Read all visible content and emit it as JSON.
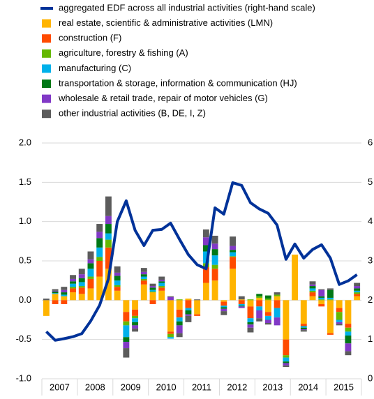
{
  "chart_data": {
    "type": "bar",
    "stacked": true,
    "year_labels": [
      "2007",
      "2008",
      "2009",
      "2010",
      "2011",
      "2012",
      "2013",
      "2014",
      "2015"
    ],
    "ylim": [
      -1.0,
      2.0
    ],
    "yticks": [
      {
        "value": -1.0,
        "label": "-1.0"
      },
      -0.5,
      {
        "value": 0,
        "label": "0.0"
      },
      0.5,
      {
        "value": 1.0,
        "label": "1.0"
      },
      1.5,
      {
        "value": 2.0,
        "label": "2.0"
      }
    ],
    "y2lim": [
      0,
      6
    ],
    "y2ticks": [
      0,
      1,
      2,
      3,
      4,
      5,
      6
    ],
    "grid": true,
    "series": [
      {
        "name": "aggregated EDF across all industrial activities (right-hand scale)",
        "type": "line",
        "axis": "y2",
        "color": "#003299",
        "values": [
          1.2,
          0.98,
          1.02,
          1.07,
          1.15,
          1.47,
          1.87,
          2.54,
          4.0,
          4.53,
          3.78,
          3.39,
          3.78,
          3.8,
          3.96,
          3.55,
          3.16,
          2.9,
          2.8,
          4.35,
          4.19,
          4.99,
          4.92,
          4.48,
          4.32,
          4.21,
          3.91,
          3.04,
          3.43,
          3.07,
          3.29,
          3.41,
          3.07,
          2.4,
          2.49,
          2.65
        ]
      },
      {
        "name": "real estate, scientific & administrative activities (LMN)",
        "color": "#ffb400",
        "values": [
          -0.2,
          0.08,
          0.05,
          0.1,
          0.08,
          0.15,
          0.3,
          0.4,
          0.12,
          -0.15,
          -0.12,
          0.2,
          0.1,
          0.12,
          -0.4,
          -0.12,
          0.02,
          -0.18,
          0.22,
          0.25,
          -0.02,
          0.4,
          0.01,
          -0.08,
          0.03,
          -0.15,
          0.05,
          -0.5,
          0.58,
          -0.3,
          0.05,
          -0.05,
          -0.42,
          -0.1,
          -0.3,
          0.05
        ]
      },
      {
        "name": "construction (F)",
        "color": "#ff4b00",
        "values": [
          0,
          -0.05,
          -0.05,
          0.05,
          0.08,
          0.12,
          0.2,
          0.27,
          0.05,
          -0.12,
          -0.08,
          0.05,
          -0.05,
          0.04,
          -0.03,
          -0.1,
          -0.1,
          -0.02,
          0.2,
          0.15,
          -0.05,
          0.15,
          -0.05,
          -0.15,
          -0.08,
          -0.05,
          -0.1,
          -0.2,
          0,
          -0.03,
          0.05,
          -0.03,
          -0.02,
          -0.05,
          -0.05,
          0.03
        ]
      },
      {
        "name": "agriculture, forestry & fishing (A)",
        "color": "#65b800",
        "values": [
          0,
          0,
          0,
          0.02,
          0.02,
          0.03,
          0.05,
          0.1,
          0.02,
          -0.05,
          -0.03,
          0.02,
          0.01,
          0.02,
          -0.04,
          0.01,
          0,
          0,
          0.05,
          0.05,
          0,
          0.01,
          0,
          0.01,
          0.02,
          0.02,
          0.02,
          -0.03,
          0,
          0,
          0.02,
          0.01,
          0.01,
          -0.1,
          -0.05,
          0.02
        ]
      },
      {
        "name": "manufacturing (C)",
        "color": "#00b1ea",
        "values": [
          0,
          0.01,
          0.02,
          0.04,
          0.05,
          0.1,
          0.12,
          0.08,
          0.06,
          -0.15,
          -0.05,
          0.03,
          0.02,
          0.04,
          -0.02,
          -0.05,
          -0.03,
          0,
          0.15,
          0.12,
          -0.02,
          0.05,
          -0.02,
          -0.05,
          -0.05,
          -0.05,
          -0.12,
          -0.05,
          0,
          -0.02,
          0.03,
          0.02,
          0.02,
          -0.03,
          -0.05,
          0.02
        ]
      },
      {
        "name": "transportation & storage, information & communication (HJ)",
        "color": "#007816",
        "values": [
          0,
          0.02,
          0.03,
          0.03,
          0.05,
          0.07,
          0.12,
          0.12,
          0.06,
          -0.06,
          -0.04,
          0.03,
          0.03,
          0.02,
          0,
          -0.05,
          -0.05,
          0,
          0.08,
          0.08,
          -0.02,
          0.03,
          -0.01,
          -0.03,
          0.03,
          0.04,
          0,
          -0.02,
          0,
          -0.02,
          0.03,
          0.02,
          0.1,
          0,
          -0.1,
          0.03
        ]
      },
      {
        "name": "wholesale & retail trade, repair of motor vehicles (G)",
        "color": "#8139c6",
        "values": [
          0,
          0.01,
          0.03,
          0.03,
          0.05,
          0.05,
          0.08,
          0.1,
          0.04,
          -0.08,
          -0.04,
          0.03,
          0.02,
          0.02,
          0.04,
          -0.1,
          -0.02,
          0,
          0.1,
          0.07,
          -0.03,
          0.05,
          -0.02,
          -0.04,
          -0.1,
          -0.04,
          -0.1,
          -0.03,
          0,
          -0.01,
          0.02,
          0.08,
          0,
          -0.02,
          -0.1,
          0.03
        ]
      },
      {
        "name": "other industrial activities (B, DE, I, Z)",
        "color": "#5c5c5c",
        "values": [
          0.02,
          0.02,
          0.04,
          0.05,
          0.07,
          0.1,
          0.1,
          0.25,
          0.08,
          -0.12,
          -0.04,
          0.05,
          0.03,
          0.04,
          0.01,
          -0.05,
          -0.08,
          0.01,
          0.1,
          0.1,
          -0.05,
          0.12,
          0.04,
          -0.06,
          -0.04,
          -0.02,
          0.03,
          -0.02,
          0,
          -0.02,
          0.04,
          0.01,
          0.02,
          -0.02,
          -0.05,
          0.04
        ]
      }
    ]
  }
}
